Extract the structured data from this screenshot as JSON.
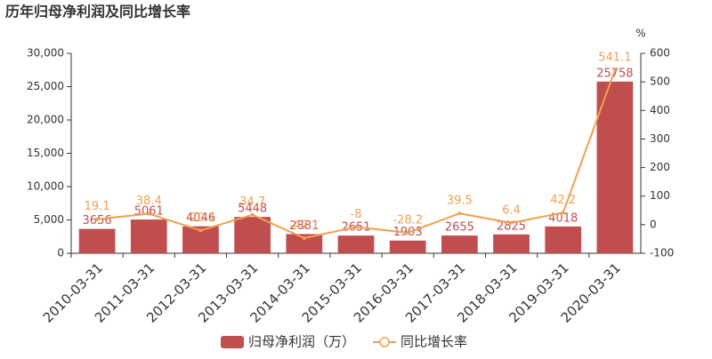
{
  "chart_data": {
    "type": "bar",
    "title": "历年归母净利润及同比增长率",
    "categories": [
      "2010-03-31",
      "2011-03-31",
      "2012-03-31",
      "2013-03-31",
      "2014-03-31",
      "2015-03-31",
      "2016-03-31",
      "2017-03-31",
      "2018-03-31",
      "2019-03-31",
      "2020-03-31"
    ],
    "series": [
      {
        "name": "归母净利润（万）",
        "type": "bar",
        "color": "#c04e4e",
        "values": [
          3656,
          5061,
          4046,
          5448,
          2881,
          2651,
          1903,
          2655,
          2825,
          4018,
          25758
        ]
      },
      {
        "name": "同比增长率",
        "type": "line",
        "axis": "y2",
        "color": "#f0a050",
        "values": [
          19.1,
          38.4,
          -20.1,
          34.7,
          -47.1,
          -8,
          -28.2,
          39.5,
          6.4,
          42.2,
          541.1
        ]
      }
    ],
    "ylim": [
      0,
      30000
    ],
    "yticks": [
      0,
      {
        "value": 5000,
        "label": "5,000"
      },
      {
        "value": 10000,
        "label": "10,000"
      },
      {
        "value": 15000,
        "label": "15,000"
      },
      {
        "value": 20000,
        "label": "20,000"
      },
      {
        "value": 25000,
        "label": "25,000"
      },
      {
        "value": 30000,
        "label": "30,000"
      }
    ],
    "y2label": "%",
    "y2lim": [
      -100,
      600
    ],
    "y2ticks": [
      -100,
      0,
      100,
      200,
      300,
      400,
      500,
      600
    ],
    "grid": false
  }
}
